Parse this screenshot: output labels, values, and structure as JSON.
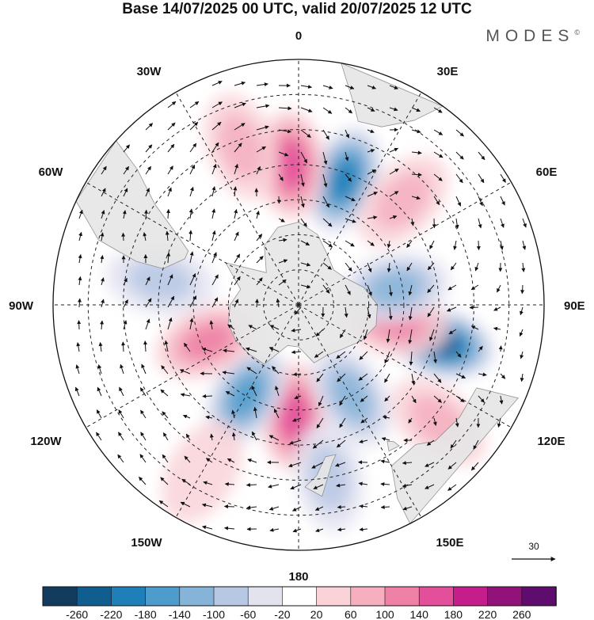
{
  "title": "Base 14/07/2025 00 UTC, valid 20/07/2025 12 UTC",
  "brand": "MODES",
  "brand_mark": "©",
  "longitude_labels": {
    "top": "0",
    "bottom": "180",
    "left": "90W",
    "right": "90E",
    "lon30w": "30W",
    "lon30e": "30E",
    "lon60w": "60W",
    "lon60e": "60E",
    "lon120w": "120W",
    "lon120e": "120E",
    "lon150w": "150W",
    "lon150e": "150E"
  },
  "reference_vector_label": "30",
  "colorbar": {
    "colors": [
      "#123b5e",
      "#0f5e8f",
      "#1f7fb8",
      "#4d9ccb",
      "#86b4d8",
      "#b7c8e4",
      "#e3e3f0",
      "#ffffff",
      "#f9d3d8",
      "#f5afbe",
      "#ef80a6",
      "#e34f9b",
      "#c51d8c",
      "#92127a",
      "#5e0c6e"
    ],
    "tick_labels": [
      "-260",
      "-220",
      "-180",
      "-140",
      "-100",
      "-60",
      "-20",
      "20",
      "60",
      "100",
      "140",
      "180",
      "220",
      "260"
    ]
  },
  "anomaly_centers": [
    {
      "lon": 20,
      "lat": -52,
      "value": -180
    },
    {
      "lon": -3,
      "lat": -50,
      "value": 150
    },
    {
      "lon": 105,
      "lat": -48,
      "value": -220
    },
    {
      "lon": 100,
      "lat": -62,
      "value": 120
    },
    {
      "lon": 80,
      "lat": -62,
      "value": -120
    },
    {
      "lon": -178,
      "lat": -58,
      "value": 170
    },
    {
      "lon": -150,
      "lat": -60,
      "value": -160
    },
    {
      "lon": -112,
      "lat": -62,
      "value": 110
    },
    {
      "lon": -80,
      "lat": -50,
      "value": -90
    },
    {
      "lon": 150,
      "lat": -60,
      "value": -110
    },
    {
      "lon": 45,
      "lat": -48,
      "value": 90
    },
    {
      "lon": -20,
      "lat": -42,
      "value": 60
    },
    {
      "lon": 170,
      "lat": -40,
      "value": -80
    },
    {
      "lon": 130,
      "lat": -38,
      "value": 60
    },
    {
      "lon": -150,
      "lat": -35,
      "value": 50
    }
  ],
  "colors": {
    "land": "#e6e6e6",
    "coast": "#8a8a8a",
    "grid": "#222222"
  }
}
